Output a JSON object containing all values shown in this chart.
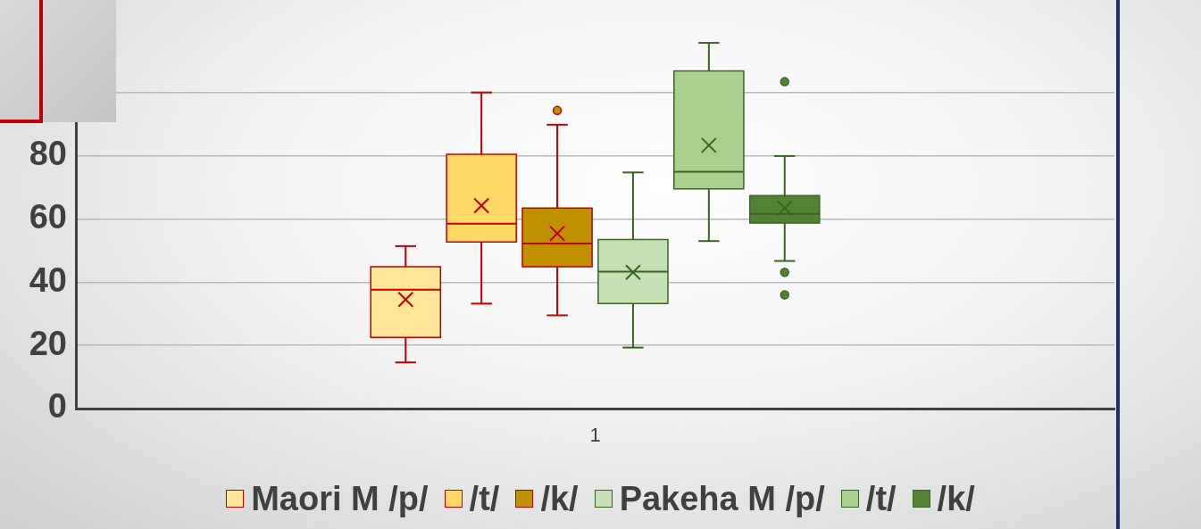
{
  "chart_data": {
    "type": "box",
    "categories": [
      "1"
    ],
    "series": [
      {
        "name": "Maori M /p/",
        "color": "#ffe699",
        "boxes": [
          {
            "low": 14.6,
            "q1": 22.5,
            "median": 37.6,
            "q3": 44.9,
            "high": 51.4,
            "mean": 34.5
          }
        ]
      },
      {
        "name": "/t/",
        "color": "#ffd966",
        "boxes": [
          {
            "low": 33.2,
            "q1": 52.7,
            "median": 58.5,
            "q3": 80.4,
            "high": 100,
            "mean": 64.2
          }
        ]
      },
      {
        "name": "/k/",
        "color": "#bf9000",
        "boxes": [
          {
            "low": 29.5,
            "q1": 44.9,
            "median": 52.2,
            "q3": 63.4,
            "high": 89.8,
            "mean": 55.4,
            "outliers": [
              94.3
            ]
          }
        ]
      },
      {
        "name": "Pakeha M /p/",
        "color": "#c5e0b4",
        "boxes": [
          {
            "low": 19.3,
            "q1": 33.2,
            "median": 43.3,
            "q3": 53.5,
            "high": 74.7,
            "mean": 43.1
          }
        ]
      },
      {
        "name": "/t/",
        "color": "#a9d18e",
        "boxes": [
          {
            "low": 53.0,
            "q1": 69.5,
            "median": 74.9,
            "q3": 106.8,
            "high": 115.7,
            "mean": 83.3
          }
        ]
      },
      {
        "name": "/k/",
        "color": "#548235",
        "boxes": [
          {
            "low": 46.7,
            "q1": 58.7,
            "median": 61.6,
            "q3": 67.4,
            "high": 79.9,
            "mean": 63.4,
            "outliers": [
              103.4,
              43.1,
              36.0
            ]
          }
        ]
      }
    ],
    "ylim": [
      0,
      120
    ],
    "yticks": [
      0,
      20,
      40,
      60,
      80,
      {
        "value": 100,
        "label": null
      }
    ],
    "grid": "y",
    "legend": "bottom",
    "marker": "cross"
  }
}
